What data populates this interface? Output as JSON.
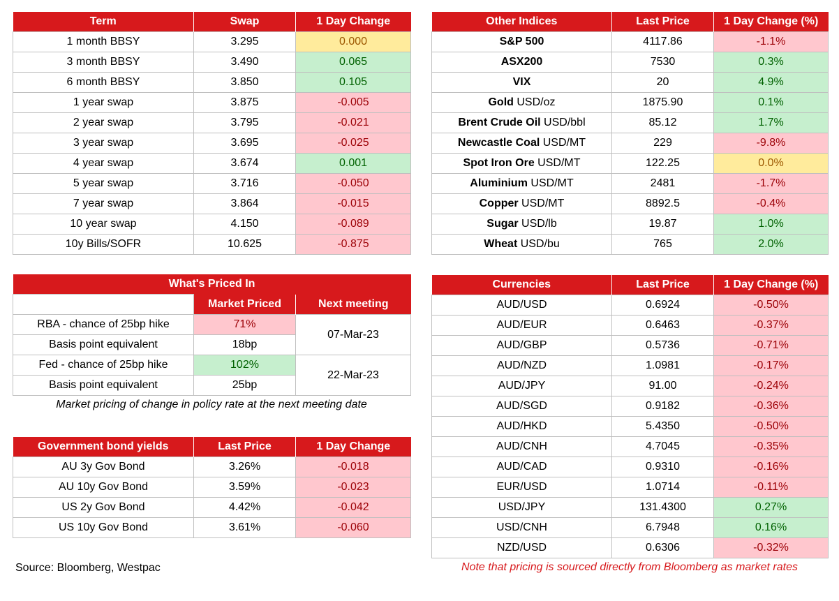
{
  "swaps": {
    "headers": [
      "Term",
      "Swap",
      "1 Day Change"
    ],
    "rows": [
      {
        "term": "1 month BBSY",
        "swap": "3.295",
        "change": "0.000",
        "dir": "neu"
      },
      {
        "term": "3 month BBSY",
        "swap": "3.490",
        "change": "0.065",
        "dir": "pos"
      },
      {
        "term": "6 month BBSY",
        "swap": "3.850",
        "change": "0.105",
        "dir": "pos"
      },
      {
        "term": "1 year swap",
        "swap": "3.875",
        "change": "-0.005",
        "dir": "neg"
      },
      {
        "term": "2 year swap",
        "swap": "3.795",
        "change": "-0.021",
        "dir": "neg"
      },
      {
        "term": "3 year swap",
        "swap": "3.695",
        "change": "-0.025",
        "dir": "neg"
      },
      {
        "term": "4 year swap",
        "swap": "3.674",
        "change": "0.001",
        "dir": "pos"
      },
      {
        "term": "5 year swap",
        "swap": "3.716",
        "change": "-0.050",
        "dir": "neg"
      },
      {
        "term": "7 year swap",
        "swap": "3.864",
        "change": "-0.015",
        "dir": "neg"
      },
      {
        "term": "10 year swap",
        "swap": "4.150",
        "change": "-0.089",
        "dir": "neg"
      },
      {
        "term": "10y Bills/SOFR",
        "swap": "10.625",
        "change": "-0.875",
        "dir": "neg"
      }
    ]
  },
  "indices": {
    "headers": [
      "Other Indices",
      "Last Price",
      "1 Day Change (%)"
    ],
    "rows": [
      {
        "name": "S&P 500",
        "unit": "",
        "price": "4117.86",
        "change": "-1.1%",
        "dir": "neg"
      },
      {
        "name": "ASX200",
        "unit": "",
        "price": "7530",
        "change": "0.3%",
        "dir": "pos"
      },
      {
        "name": "VIX",
        "unit": "",
        "price": "20",
        "change": "4.9%",
        "dir": "pos"
      },
      {
        "name": "Gold",
        "unit": " USD/oz",
        "price": "1875.90",
        "change": "0.1%",
        "dir": "pos"
      },
      {
        "name": "Brent Crude Oil",
        "unit": " USD/bbl",
        "price": "85.12",
        "change": "1.7%",
        "dir": "pos"
      },
      {
        "name": "Newcastle Coal",
        "unit": " USD/MT",
        "price": "229",
        "change": "-9.8%",
        "dir": "neg"
      },
      {
        "name": "Spot Iron Ore",
        "unit": " USD/MT",
        "price": "122.25",
        "change": "0.0%",
        "dir": "neu"
      },
      {
        "name": "Aluminium",
        "unit": " USD/MT",
        "price": "2481",
        "change": "-1.7%",
        "dir": "neg"
      },
      {
        "name": "Copper",
        "unit": " USD/MT",
        "price": "8892.5",
        "change": "-0.4%",
        "dir": "neg"
      },
      {
        "name": "Sugar",
        "unit": " USD/lb",
        "price": "19.87",
        "change": "1.0%",
        "dir": "pos"
      },
      {
        "name": "Wheat",
        "unit": " USD/bu",
        "price": "765",
        "change": "2.0%",
        "dir": "pos"
      }
    ]
  },
  "priced": {
    "title": "What's Priced In",
    "col_market": "Market Priced",
    "col_next": "Next meeting",
    "rows": [
      {
        "label": "RBA - chance of 25bp hike",
        "value": "71%",
        "dir": "neg"
      },
      {
        "label": "Basis point equivalent",
        "value": "18bp",
        "dir": ""
      },
      {
        "label": "Fed - chance of 25bp hike",
        "value": "102%",
        "dir": "pos"
      },
      {
        "label": "Basis point equivalent",
        "value": "25bp",
        "dir": ""
      }
    ],
    "meetings": [
      "07-Mar-23",
      "22-Mar-23"
    ],
    "note": "Market pricing of change in policy rate at the next meeting date"
  },
  "bonds": {
    "headers": [
      "Government bond yields",
      "Last Price",
      "1 Day Change"
    ],
    "rows": [
      {
        "name": "AU 3y Gov Bond",
        "price": "3.26%",
        "change": "-0.018",
        "dir": "neg"
      },
      {
        "name": "AU 10y Gov Bond",
        "price": "3.59%",
        "change": "-0.023",
        "dir": "neg"
      },
      {
        "name": "US 2y Gov Bond",
        "price": "4.42%",
        "change": "-0.042",
        "dir": "neg"
      },
      {
        "name": "US 10y Gov Bond",
        "price": "3.61%",
        "change": "-0.060",
        "dir": "neg"
      }
    ]
  },
  "currencies": {
    "headers": [
      "Currencies",
      "Last Price",
      "1 Day Change (%)"
    ],
    "rows": [
      {
        "pair": "AUD/USD",
        "price": "0.6924",
        "change": "-0.50%",
        "dir": "neg"
      },
      {
        "pair": "AUD/EUR",
        "price": "0.6463",
        "change": "-0.37%",
        "dir": "neg"
      },
      {
        "pair": "AUD/GBP",
        "price": "0.5736",
        "change": "-0.71%",
        "dir": "neg"
      },
      {
        "pair": "AUD/NZD",
        "price": "1.0981",
        "change": "-0.17%",
        "dir": "neg"
      },
      {
        "pair": "AUD/JPY",
        "price": "91.00",
        "change": "-0.24%",
        "dir": "neg"
      },
      {
        "pair": "AUD/SGD",
        "price": "0.9182",
        "change": "-0.36%",
        "dir": "neg"
      },
      {
        "pair": "AUD/HKD",
        "price": "5.4350",
        "change": "-0.50%",
        "dir": "neg"
      },
      {
        "pair": "AUD/CNH",
        "price": "4.7045",
        "change": "-0.35%",
        "dir": "neg"
      },
      {
        "pair": "AUD/CAD",
        "price": "0.9310",
        "change": "-0.16%",
        "dir": "neg"
      },
      {
        "pair": "EUR/USD",
        "price": "1.0714",
        "change": "-0.11%",
        "dir": "neg"
      },
      {
        "pair": "USD/JPY",
        "price": "131.4300",
        "change": "0.27%",
        "dir": "pos"
      },
      {
        "pair": "USD/CNH",
        "price": "6.7948",
        "change": "0.16%",
        "dir": "pos"
      },
      {
        "pair": "NZD/USD",
        "price": "0.6306",
        "change": "-0.32%",
        "dir": "neg"
      }
    ]
  },
  "footer": {
    "source": "Source: Bloomberg, Westpac",
    "note": "Note that pricing is sourced directly from Bloomberg as market rates"
  }
}
